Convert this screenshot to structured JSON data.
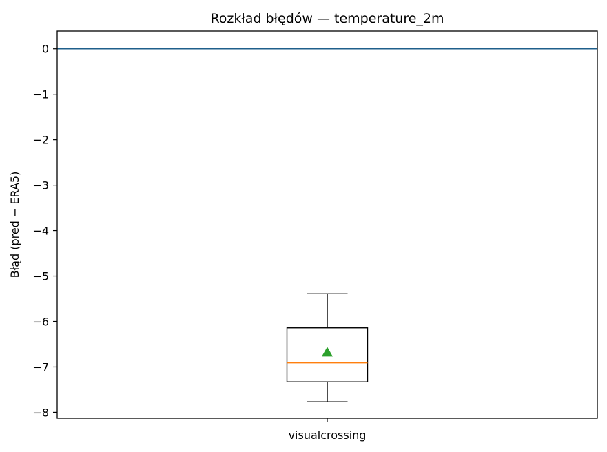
{
  "chart_data": {
    "type": "box",
    "title": "Rozkład błędów — temperature_2m",
    "xlabel": "",
    "ylabel": "Błąd (pred − ERA5)",
    "categories": [
      "visualcrossing"
    ],
    "ylim": [
      -8.13,
      0.39
    ],
    "yticks": [
      0,
      -1,
      -2,
      -3,
      -4,
      -5,
      -6,
      -7,
      -8
    ],
    "ytick_labels": [
      "0",
      "−1",
      "−2",
      "−3",
      "−4",
      "−5",
      "−6",
      "−7",
      "−8"
    ],
    "boxes": [
      {
        "category": "visualcrossing",
        "whisker_low": -7.77,
        "q1": -7.33,
        "median": -6.91,
        "q3": -6.14,
        "whisker_high": -5.39,
        "mean": -6.68
      }
    ],
    "reference_line": {
      "y": 0,
      "color": "#1f5f8b"
    },
    "colors": {
      "median": "#ff7f0e",
      "mean": "#2ca02c",
      "box": "#000000"
    },
    "grid": false
  }
}
